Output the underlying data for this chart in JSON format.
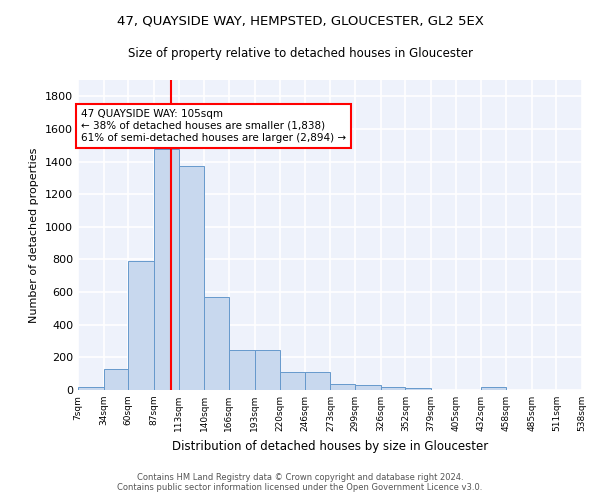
{
  "title1": "47, QUAYSIDE WAY, HEMPSTED, GLOUCESTER, GL2 5EX",
  "title2": "Size of property relative to detached houses in Gloucester",
  "xlabel": "Distribution of detached houses by size in Gloucester",
  "ylabel": "Number of detached properties",
  "footnote1": "Contains HM Land Registry data © Crown copyright and database right 2024.",
  "footnote2": "Contains public sector information licensed under the Open Government Licence v3.0.",
  "bin_edges": [
    7,
    34,
    60,
    87,
    113,
    140,
    166,
    193,
    220,
    246,
    273,
    299,
    326,
    352,
    379,
    405,
    432,
    458,
    485,
    511,
    538
  ],
  "bar_heights": [
    20,
    130,
    790,
    1480,
    1370,
    570,
    245,
    245,
    110,
    110,
    35,
    30,
    20,
    15,
    0,
    0,
    20,
    0,
    0,
    0
  ],
  "bar_color": "#c8d8ee",
  "bar_edge_color": "#6699cc",
  "vline_x": 105,
  "vline_color": "red",
  "annotation_text": "47 QUAYSIDE WAY: 105sqm\n← 38% of detached houses are smaller (1,838)\n61% of semi-detached houses are larger (2,894) →",
  "annotation_box_color": "white",
  "annotation_box_edge_color": "red",
  "ylim": [
    0,
    1900
  ],
  "background_color": "#eef2fb",
  "grid_color": "white",
  "tick_labels": [
    "7sqm",
    "34sqm",
    "60sqm",
    "87sqm",
    "113sqm",
    "140sqm",
    "166sqm",
    "193sqm",
    "220sqm",
    "246sqm",
    "273sqm",
    "299sqm",
    "326sqm",
    "352sqm",
    "379sqm",
    "405sqm",
    "432sqm",
    "458sqm",
    "485sqm",
    "511sqm",
    "538sqm"
  ]
}
